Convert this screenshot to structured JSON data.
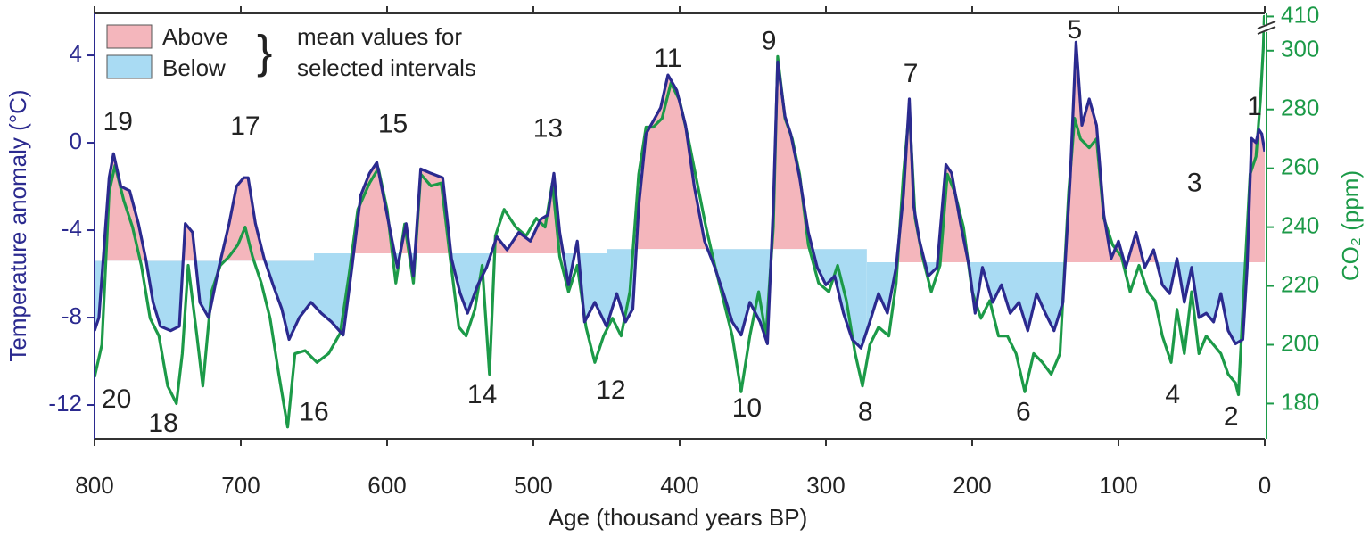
{
  "chart_data": {
    "type": "line",
    "xlabel": "Age (thousand years BP)",
    "ylabel": "Temperature anomaly (°C)",
    "y2label": "CO₂ (ppm)",
    "xlim": [
      800,
      0
    ],
    "xticks": [
      800,
      700,
      600,
      500,
      400,
      300,
      200,
      100,
      0
    ],
    "ylim": [
      -13.55,
      5.92
    ],
    "yticks": [
      4,
      0,
      -4,
      -8,
      -12
    ],
    "y2lim": [
      168,
      412
    ],
    "y2_break": [
      306,
      405
    ],
    "y2ticks": [
      180,
      200,
      220,
      240,
      260,
      280,
      300,
      410
    ],
    "ycolor": "#2b2a8f",
    "y2color": "#1c9a48",
    "legend": [
      {
        "label": "Above",
        "color": "#f4b6bc"
      },
      {
        "label": "Below",
        "color": "#a9dbf3"
      }
    ],
    "legend_note": [
      "mean values for",
      "selected intervals"
    ],
    "intervals": {
      "bounds": [
        800,
        650,
        450,
        272,
        0
      ],
      "means": [
        -5.4,
        -5.06,
        -4.86,
        -5.47
      ]
    },
    "series": [
      {
        "color": "#1c9a48",
        "axis": "y2",
        "x": [
          800,
          795,
          790,
          786,
          780,
          774,
          768,
          762,
          756,
          750,
          744,
          740,
          736,
          730,
          726,
          720,
          714,
          708,
          702,
          697,
          692,
          686,
          680,
          674,
          668,
          663,
          656,
          648,
          640,
          632,
          626,
          620,
          612,
          606,
          600,
          594,
          588,
          582,
          577,
          570,
          563,
          557,
          551,
          546,
          540,
          535,
          530,
          526,
          520,
          512,
          505,
          498,
          492,
          487,
          482,
          476,
          470,
          464,
          458,
          452,
          446,
          440,
          434,
          428,
          423,
          418,
          412,
          406,
          400,
          394,
          388,
          382,
          376,
          370,
          364,
          358,
          352,
          346,
          341,
          336,
          333,
          328,
          323,
          318,
          312,
          305,
          298,
          292,
          286,
          280,
          275,
          270,
          264,
          257,
          252,
          247,
          243,
          239,
          234,
          228,
          222,
          217,
          212,
          206,
          200,
          194,
          188,
          182,
          176,
          170,
          164,
          158,
          152,
          146,
          140,
          134,
          130,
          126,
          120,
          115,
          110,
          104,
          98,
          92,
          86,
          80,
          75,
          70,
          64,
          60,
          55,
          50,
          45,
          40,
          35,
          30,
          25,
          20,
          18,
          14,
          10,
          6,
          3,
          1,
          0.3,
          0
        ],
        "values": [
          189,
          200,
          252,
          261,
          249,
          240,
          227,
          209,
          203,
          186,
          180,
          197,
          227,
          203,
          186,
          218,
          227,
          230,
          234,
          240,
          230,
          221,
          209,
          190,
          172,
          197,
          198,
          194,
          197,
          204,
          224,
          246,
          255,
          260,
          246,
          221,
          241,
          221,
          258,
          254,
          255,
          230,
          206,
          203,
          212,
          227,
          190,
          237,
          246,
          240,
          237,
          243,
          240,
          255,
          230,
          218,
          227,
          206,
          194,
          203,
          209,
          203,
          218,
          258,
          274,
          274,
          277,
          289,
          283,
          270,
          255,
          240,
          227,
          215,
          203,
          184,
          203,
          218,
          203,
          240,
          298,
          277,
          270,
          258,
          234,
          221,
          218,
          227,
          215,
          197,
          186,
          200,
          206,
          203,
          221,
          258,
          280,
          243,
          230,
          218,
          227,
          258,
          252,
          240,
          218,
          209,
          215,
          203,
          203,
          197,
          184,
          197,
          194,
          190,
          197,
          252,
          277,
          270,
          267,
          270,
          243,
          234,
          230,
          218,
          227,
          218,
          215,
          203,
          194,
          212,
          197,
          218,
          197,
          203,
          200,
          197,
          190,
          187,
          183,
          221,
          258,
          264,
          283,
          301,
          410,
          410
        ]
      },
      {
        "color": "#2b2a8f",
        "axis": "y",
        "x": [
          800,
          797,
          790,
          787,
          782,
          776,
          770,
          765,
          760,
          755,
          748,
          742,
          738,
          733,
          728,
          722,
          715,
          708,
          703,
          698,
          695,
          690,
          684,
          678,
          672,
          667,
          660,
          652,
          645,
          638,
          630,
          624,
          618,
          612,
          607,
          600,
          593,
          587,
          582,
          577,
          570,
          562,
          556,
          550,
          545,
          538,
          532,
          525,
          518,
          510,
          502,
          495,
          490,
          486,
          482,
          476,
          470,
          465,
          458,
          450,
          443,
          437,
          432,
          428,
          423,
          418,
          413,
          408,
          402,
          396,
          390,
          383,
          376,
          370,
          364,
          358,
          352,
          345,
          340,
          336,
          333,
          328,
          324,
          318,
          312,
          306,
          300,
          294,
          288,
          282,
          276,
          270,
          264,
          258,
          252,
          247,
          243,
          240,
          236,
          230,
          224,
          218,
          214,
          208,
          202,
          198,
          193,
          186,
          180,
          174,
          168,
          162,
          156,
          150,
          144,
          138,
          133,
          129,
          125,
          120,
          115,
          110,
          105,
          100,
          95,
          88,
          82,
          76,
          70,
          65,
          60,
          55,
          50,
          45,
          40,
          35,
          30,
          25,
          20,
          15,
          12,
          9,
          6,
          4,
          2,
          0
        ],
        "values": [
          -8.6,
          -8,
          -1.6,
          -0.5,
          -2,
          -2.2,
          -3.7,
          -5.3,
          -7.3,
          -8.4,
          -8.6,
          -8.4,
          -3.7,
          -4.1,
          -7.3,
          -8,
          -5.7,
          -3.7,
          -2,
          -1.6,
          -1.6,
          -3.7,
          -5.3,
          -6.5,
          -7.6,
          -9,
          -8,
          -7.3,
          -7.8,
          -8.2,
          -8.8,
          -5.7,
          -2.4,
          -1.4,
          -0.9,
          -3.3,
          -5.7,
          -3.7,
          -6.1,
          -1.2,
          -1.4,
          -1.6,
          -5.3,
          -6.9,
          -7.8,
          -6.5,
          -5.7,
          -4.3,
          -4.9,
          -4.1,
          -4.5,
          -3.5,
          -3.3,
          -1.4,
          -4.1,
          -6.5,
          -4.5,
          -8.2,
          -7.3,
          -8.4,
          -6.9,
          -8.2,
          -7.6,
          -2.9,
          0.4,
          1,
          1.6,
          3.1,
          2.4,
          0.8,
          -2,
          -4.5,
          -5.7,
          -6.9,
          -8.2,
          -8.8,
          -7.3,
          -8.2,
          -9.2,
          -2.9,
          3.7,
          1.2,
          0.4,
          -1.6,
          -4.1,
          -5.7,
          -6.5,
          -6.1,
          -7.8,
          -9,
          -9.4,
          -8.2,
          -6.9,
          -7.8,
          -5.7,
          -2.4,
          2,
          -2.9,
          -4.5,
          -6.1,
          -5.7,
          -1,
          -1.4,
          -3.7,
          -5.7,
          -7.8,
          -5.7,
          -7.3,
          -6.5,
          -7.8,
          -7.3,
          -8.6,
          -6.9,
          -7.8,
          -8.6,
          -7.3,
          -1.6,
          4.6,
          0.8,
          2,
          0.8,
          -3.3,
          -5.3,
          -4.5,
          -5.7,
          -4.1,
          -5.7,
          -4.9,
          -6.5,
          -6.9,
          -5.3,
          -7.3,
          -5.7,
          -8,
          -7.8,
          -8.2,
          -6.9,
          -8.6,
          -9.2,
          -9,
          -5.7,
          0.2,
          0,
          0.6,
          0.4,
          -0.4
        ]
      }
    ],
    "annotations": [
      {
        "text": "19",
        "x": 784,
        "y": 0.9
      },
      {
        "text": "20",
        "x": 785,
        "y": -11.8
      },
      {
        "text": "18",
        "x": 753,
        "y": -12.9
      },
      {
        "text": "17",
        "x": 697,
        "y": 0.7
      },
      {
        "text": "16",
        "x": 650,
        "y": -12.4
      },
      {
        "text": "15",
        "x": 596,
        "y": 0.8
      },
      {
        "text": "14",
        "x": 535,
        "y": -11.6
      },
      {
        "text": "13",
        "x": 490,
        "y": 0.6
      },
      {
        "text": "12",
        "x": 447,
        "y": -11.4
      },
      {
        "text": "11",
        "x": 408,
        "y": 3.8
      },
      {
        "text": "10",
        "x": 354,
        "y": -12.2
      },
      {
        "text": "9",
        "x": 339,
        "y": 4.6
      },
      {
        "text": "8",
        "x": 273,
        "y": -12.4
      },
      {
        "text": "7",
        "x": 242,
        "y": 3.1
      },
      {
        "text": "6",
        "x": 165,
        "y": -12.4
      },
      {
        "text": "5",
        "x": 130,
        "y": 5.1
      },
      {
        "text": "4",
        "x": 63,
        "y": -11.6
      },
      {
        "text": "3",
        "x": 48,
        "y": -1.9
      },
      {
        "text": "2",
        "x": 23,
        "y": -12.6
      },
      {
        "text": "1",
        "x": 7,
        "y": 1.6
      }
    ]
  }
}
